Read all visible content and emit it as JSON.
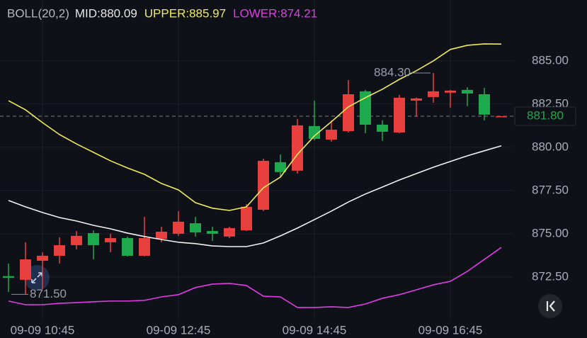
{
  "chart_data": {
    "type": "candlestick",
    "indicator": "BOLL(20,2)",
    "categories": [
      null,
      null,
      "09-09 10:45",
      null,
      null,
      null,
      null,
      null,
      null,
      null,
      "09-09 12:45",
      null,
      null,
      null,
      null,
      null,
      null,
      null,
      "09-09 14:45",
      null,
      null,
      null,
      null,
      null,
      null,
      null,
      "09-09 16:45",
      null,
      null,
      null
    ],
    "open": [
      872.55,
      872.34,
      873.44,
      873.73,
      874.34,
      875.04,
      874.51,
      874.75,
      873.73,
      874.71,
      875.0,
      875.61,
      875.16,
      874.84,
      875.2,
      876.39,
      879.14,
      878.65,
      881.23,
      880.45,
      880.94,
      883.24,
      881.31,
      880.86,
      882.7,
      882.91,
      883.16,
      883.32,
      883.07,
      881.8
    ],
    "close": [
      872.45,
      873.52,
      873.73,
      874.34,
      874.88,
      874.34,
      874.75,
      873.73,
      874.75,
      875.12,
      875.7,
      875.08,
      875.0,
      875.33,
      876.56,
      879.22,
      878.57,
      881.27,
      880.49,
      881.02,
      883.07,
      881.31,
      880.9,
      882.87,
      882.83,
      883.24,
      883.28,
      883.11,
      881.89,
      881.8
    ],
    "high": [
      873.28,
      874.51,
      873.93,
      874.8,
      875.16,
      875.2,
      875.0,
      874.84,
      875.98,
      875.41,
      876.31,
      875.98,
      875.41,
      875.41,
      876.72,
      879.34,
      879.59,
      881.64,
      882.7,
      881.56,
      883.89,
      883.32,
      881.56,
      883.03,
      882.87,
      884.3,
      883.32,
      883.48,
      883.44,
      881.8
    ],
    "low": [
      871.64,
      871.5,
      871.8,
      873.28,
      874.1,
      873.52,
      873.93,
      873.69,
      873.69,
      874.51,
      874.88,
      874.84,
      874.59,
      874.75,
      875.16,
      876.31,
      878.28,
      878.48,
      880.41,
      880.33,
      880.86,
      880.82,
      880.37,
      880.82,
      881.76,
      882.58,
      882.3,
      882.38,
      881.56,
      881.8
    ],
    "up_color": "#e8403f",
    "down_color": "#1ea94c",
    "series": [
      {
        "name": "MID:880.09",
        "color": "#f2f2f2",
        "values": [
          876.93,
          876.56,
          876.23,
          875.94,
          875.74,
          875.49,
          875.29,
          875.04,
          874.84,
          874.67,
          874.51,
          874.43,
          874.3,
          874.26,
          874.26,
          874.47,
          874.88,
          875.33,
          875.82,
          876.31,
          876.84,
          877.3,
          877.7,
          878.11,
          878.48,
          878.85,
          879.18,
          879.51,
          879.8,
          880.09
        ]
      },
      {
        "name": "UPPER:885.97",
        "color": "#f0ea5a",
        "values": [
          882.7,
          882.17,
          881.43,
          880.74,
          880.2,
          879.71,
          879.22,
          878.81,
          878.44,
          877.91,
          877.54,
          876.8,
          876.48,
          876.35,
          876.56,
          877.66,
          878.28,
          879.59,
          880.66,
          881.48,
          882.34,
          882.87,
          883.36,
          883.93,
          884.43,
          885.0,
          885.66,
          885.9,
          885.98,
          885.97
        ]
      },
      {
        "name": "LOWER:874.21",
        "color": "#e23ce6",
        "values": [
          871.11,
          870.9,
          870.9,
          870.98,
          871.02,
          871.07,
          871.11,
          871.11,
          871.15,
          871.35,
          871.48,
          871.89,
          872.09,
          872.13,
          872.01,
          871.39,
          871.35,
          870.74,
          870.74,
          870.78,
          870.74,
          870.94,
          871.27,
          871.48,
          871.76,
          872.05,
          872.25,
          872.83,
          873.52,
          874.21
        ]
      }
    ],
    "ylim": [
      870.08,
      888.52
    ],
    "yticks": [
      {
        "value": 872.5,
        "label": "872.50"
      },
      {
        "value": 875,
        "label": "875.00"
      },
      {
        "value": 877.5,
        "label": "877.50"
      },
      {
        "value": 880,
        "label": "880.00"
      },
      {
        "value": 882.5,
        "label": "882.50"
      },
      {
        "value": 885,
        "label": "885.00"
      }
    ],
    "grid": true,
    "high_label": {
      "value": 884.3,
      "label": "884.30"
    },
    "low_label": {
      "value": 871.5,
      "label": "871.50"
    },
    "last_price": {
      "value": 881.8,
      "label": "881.80"
    }
  }
}
